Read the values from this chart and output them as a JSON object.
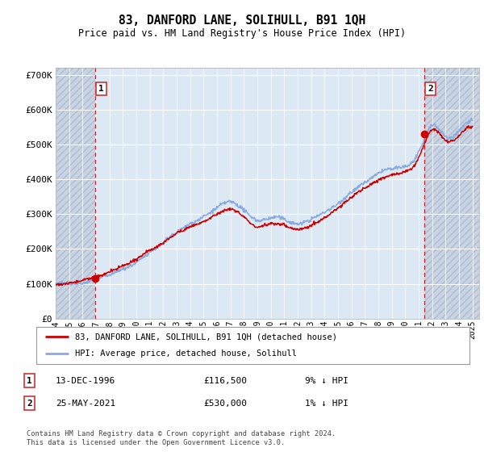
{
  "title": "83, DANFORD LANE, SOLIHULL, B91 1QH",
  "subtitle": "Price paid vs. HM Land Registry's House Price Index (HPI)",
  "ylim": [
    0,
    720000
  ],
  "yticks": [
    0,
    100000,
    200000,
    300000,
    400000,
    500000,
    600000,
    700000
  ],
  "ytick_labels": [
    "£0",
    "£100K",
    "£200K",
    "£300K",
    "£400K",
    "£500K",
    "£600K",
    "£700K"
  ],
  "xlim_start": 1994.0,
  "xlim_end": 2025.5,
  "hatch_left_end": 1996.95,
  "hatch_right_start": 2021.42,
  "sale1_x": 1996.95,
  "sale1_y": 116500,
  "sale2_x": 2021.42,
  "sale2_y": 530000,
  "sale_color": "#cc0000",
  "hpi_color": "#88aadd",
  "background_color": "#dce9f5",
  "hatch_color": "#c8d4e4",
  "legend_label1": "83, DANFORD LANE, SOLIHULL, B91 1QH (detached house)",
  "legend_label2": "HPI: Average price, detached house, Solihull",
  "table_row1": [
    "1",
    "13-DEC-1996",
    "£116,500",
    "9% ↓ HPI"
  ],
  "table_row2": [
    "2",
    "25-MAY-2021",
    "£530,000",
    "1% ↓ HPI"
  ],
  "footer": "Contains HM Land Registry data © Crown copyright and database right 2024.\nThis data is licensed under the Open Government Licence v3.0.",
  "xtick_years": [
    1994,
    1995,
    1996,
    1997,
    1998,
    1999,
    2000,
    2001,
    2002,
    2003,
    2004,
    2005,
    2006,
    2007,
    2008,
    2009,
    2010,
    2011,
    2012,
    2013,
    2014,
    2015,
    2016,
    2017,
    2018,
    2019,
    2020,
    2021,
    2022,
    2023,
    2024,
    2025
  ],
  "hpi_years": [
    1994,
    1995,
    1996,
    1997,
    1998,
    1999,
    2000,
    2001,
    2002,
    2003,
    2004,
    2005,
    2006,
    2007,
    2008,
    2009,
    2010,
    2011,
    2012,
    2013,
    2014,
    2015,
    2016,
    2017,
    2018,
    2019,
    2020,
    2021,
    2022,
    2023,
    2024,
    2025
  ],
  "hpi_values": [
    100000,
    103000,
    108000,
    118000,
    132000,
    148000,
    168000,
    195000,
    220000,
    248000,
    272000,
    295000,
    318000,
    332000,
    310000,
    278000,
    285000,
    278000,
    270000,
    282000,
    305000,
    335000,
    368000,
    395000,
    418000,
    432000,
    440000,
    480000,
    560000,
    530000,
    545000,
    575000
  ],
  "red_years": [
    1994,
    1995,
    1996,
    1997,
    1998,
    1999,
    2000,
    2001,
    2002,
    2003,
    2004,
    2005,
    2006,
    2007,
    2008,
    2009,
    2010,
    2011,
    2012,
    2013,
    2014,
    2015,
    2016,
    2017,
    2018,
    2019,
    2020,
    2021,
    2022,
    2023,
    2024,
    2025
  ],
  "red_values": [
    98000,
    100000,
    105000,
    112000,
    125000,
    140000,
    158000,
    182000,
    208000,
    236000,
    255000,
    270000,
    290000,
    305000,
    282000,
    252000,
    262000,
    258000,
    248000,
    260000,
    282000,
    310000,
    342000,
    368000,
    390000,
    405000,
    415000,
    455000,
    530000,
    500000,
    515000,
    545000
  ]
}
